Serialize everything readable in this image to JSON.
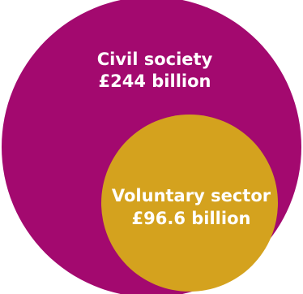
{
  "outer": {
    "name": "Civil society",
    "amount": "£244 billion",
    "color": "#a3096f"
  },
  "inner": {
    "name": "Voluntary sector",
    "amount": "£96.6 billion",
    "color": "#d4a21e"
  }
}
